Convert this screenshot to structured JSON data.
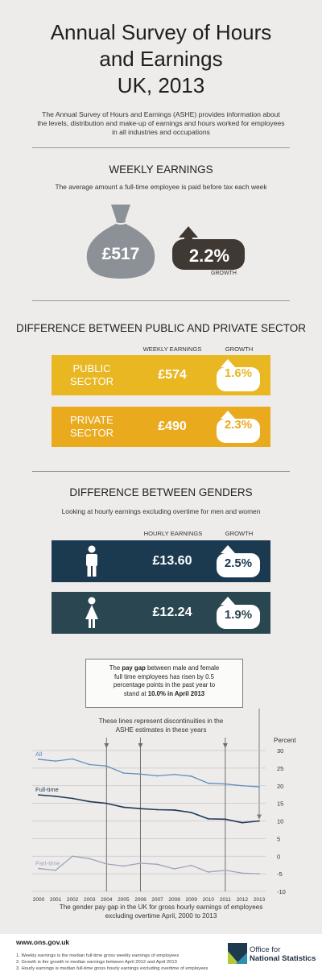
{
  "title": [
    "Annual Survey of Hours",
    "and Earnings",
    "UK, 2013"
  ],
  "intro": "The Annual Survey of Hours and Earnings (ASHE) provides information about the levels, distribution and make-up of earnings and hours worked for employees in all industries and occupations",
  "weekly": {
    "heading": "WEEKLY EARNINGS",
    "subheading": "The average amount a full-time employee is paid before tax each week",
    "amount": "£517",
    "growth": "2.2%",
    "growth_label": "GROWTH",
    "bag_color": "#8b9196",
    "growth_color": "#3f3833"
  },
  "sector": {
    "heading": "DIFFERENCE BETWEEN PUBLIC AND PRIVATE SECTOR",
    "col_earnings": "WEEKLY EARNINGS",
    "col_growth": "GROWTH",
    "rows": [
      {
        "label1": "PUBLIC",
        "label2": "SECTOR",
        "value": "£574",
        "growth": "1.6%",
        "color": "#e8b722"
      },
      {
        "label1": "PRIVATE",
        "label2": "SECTOR",
        "value": "£490",
        "growth": "2.3%",
        "color": "#eaaa1e"
      }
    ]
  },
  "gender": {
    "heading": "DIFFERENCE BETWEEN GENDERS",
    "subheading": "Looking at hourly earnings excluding overtime for men and women",
    "col_earnings": "HOURLY EARNINGS",
    "col_growth": "GROWTH",
    "rows": [
      {
        "icon": "man-icon",
        "value": "£13.60",
        "growth": "2.5%",
        "color": "#1b3a50"
      },
      {
        "icon": "woman-icon",
        "value": "£12.24",
        "growth": "1.9%",
        "color": "#2a4650"
      }
    ]
  },
  "pay_gap_note": {
    "line1_a": "The ",
    "line1_b": "pay gap",
    "line1_c": " between male and female",
    "line2": "full time employees has risen by 0.5",
    "line3": "percentage points in the past year to",
    "line4_a": "stand at ",
    "line4_b": "10.0% in April 2013"
  },
  "discontinuity_note": [
    "These lines represent discontinuities in the",
    "ASHE estimates in these years"
  ],
  "chart_data": {
    "type": "line",
    "ylabel": "Percent",
    "ylim": [
      -10,
      30
    ],
    "yticks": [
      30,
      25,
      20,
      15,
      10,
      5,
      0,
      -5,
      -10
    ],
    "x": [
      2000,
      2001,
      2002,
      2003,
      2004,
      2005,
      2006,
      2007,
      2008,
      2009,
      2010,
      2011,
      2012,
      2013
    ],
    "discontinuities": [
      2004,
      2006,
      2011
    ],
    "series": [
      {
        "name": "All",
        "color": "#5f8fc0",
        "values": [
          27.5,
          27.0,
          27.6,
          26.0,
          25.6,
          23.6,
          23.3,
          22.8,
          23.2,
          22.7,
          20.7,
          20.5,
          20.0,
          19.7
        ]
      },
      {
        "name": "Full-time",
        "color": "#1f3a56",
        "values": [
          17.4,
          17.0,
          16.4,
          15.5,
          15.0,
          13.9,
          13.5,
          13.2,
          13.1,
          12.4,
          10.6,
          10.5,
          9.5,
          10.0
        ]
      },
      {
        "name": "Part-time",
        "color": "#9aa3b8",
        "values": [
          -3.5,
          -4.0,
          0.0,
          -0.7,
          -2.2,
          -2.8,
          -2.0,
          -2.3,
          -3.6,
          -2.6,
          -4.5,
          -4.0,
          -4.8,
          -5.0
        ]
      }
    ],
    "caption": [
      "The gender pay gap in the UK for gross hourly earnings of employees",
      "excluding overtime April, 2000 to 2013"
    ]
  },
  "footer": {
    "url": "www.ons.gov.uk",
    "notes": [
      "1. Weekly earnings is the median full-time gross weekly earnings of employees",
      "2. Growth is the growth in median earnings between April 2012 and April 2013",
      "3. Hourly earnings is median full-time gross hourly earnings excluding overtime of employees"
    ],
    "org": [
      "Office for",
      "National Statistics"
    ]
  }
}
